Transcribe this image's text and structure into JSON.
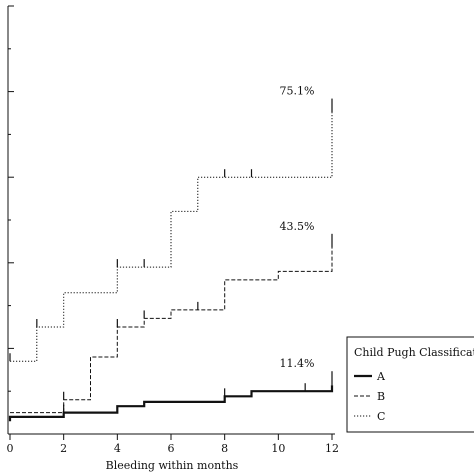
{
  "chart_data": {
    "type": "line",
    "step": true,
    "xlabel": "Bleeding within months",
    "ylabel": "",
    "xlim": [
      0,
      12
    ],
    "ylim": [
      0,
      100
    ],
    "x_ticks": [
      0,
      2,
      4,
      6,
      8,
      10,
      12
    ],
    "grid": false,
    "legend": {
      "title": "Child Pugh Classificatio",
      "placement": "bottom-right",
      "entries": [
        "A",
        "B",
        "C"
      ]
    },
    "series": [
      {
        "name": "A",
        "style": "solid",
        "x": [
          0,
          0,
          2,
          4,
          5,
          8,
          9,
          12
        ],
        "y": [
          3.0,
          4.0,
          5.0,
          6.5,
          7.5,
          8.8,
          10.0,
          11.4
        ],
        "censored_x": [
          2,
          8,
          11,
          12
        ],
        "end_label": "11.4%"
      },
      {
        "name": "B",
        "style": "dashed",
        "x": [
          0,
          2,
          3,
          4,
          5,
          6,
          8,
          10,
          12
        ],
        "y": [
          5.0,
          8.0,
          18.0,
          25.0,
          27.0,
          29.0,
          36.0,
          38.0,
          43.5
        ],
        "censored_x": [
          2,
          4,
          5,
          7,
          12
        ],
        "end_label": "43.5%"
      },
      {
        "name": "C",
        "style": "dotted",
        "x": [
          0,
          1,
          2,
          4,
          6,
          7,
          12
        ],
        "y": [
          17.0,
          25.0,
          33.0,
          39.0,
          52.0,
          60.0,
          75.1
        ],
        "censored_x": [
          0,
          1,
          4,
          5,
          8,
          9,
          12
        ],
        "end_label": "75.1%"
      }
    ]
  }
}
